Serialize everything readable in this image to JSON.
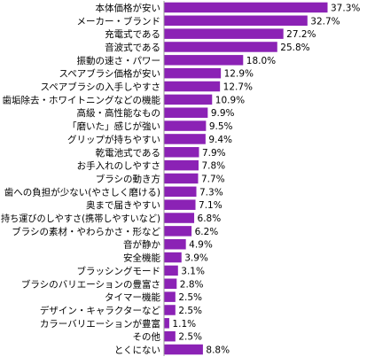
{
  "chart_data": {
    "type": "bar",
    "orientation": "horizontal",
    "title": "",
    "xlabel": "",
    "ylabel": "",
    "xlim": [
      0,
      37.3
    ],
    "grid": false,
    "legend": "none",
    "bar_color": "#8B22B5",
    "unit": "%",
    "categories": [
      "本体価格が安い",
      "メーカー・ブランド",
      "充電式である",
      "音波式である",
      "振動の速さ・パワー",
      "スペアブラシ価格が安い",
      "スペアブラシの入手しやすさ",
      "歯垢除去・ホワイトニングなどの機能",
      "高級・高性能なもの",
      "「磨いた」感じが強い",
      "グリップが持ちやすい",
      "乾電池式である",
      "お手入れのしやすさ",
      "ブラシの動き方",
      "歯への負担が少ない(やさしく磨ける)",
      "奥まで届きやすい",
      "持ち運びのしやすさ(携帯しやすいなど)",
      "ブラシの素材・やわらかさ・形など",
      "音が静か",
      "安全機能",
      "ブラッシングモード",
      "ブラシのバリエーションの豊富さ",
      "タイマー機能",
      "デザイン・キャラクターなど",
      "カラーバリエーションが豊富",
      "その他",
      "とくにない"
    ],
    "values": [
      37.3,
      32.7,
      27.2,
      25.8,
      18.0,
      12.9,
      12.7,
      10.9,
      9.9,
      9.5,
      9.4,
      7.9,
      7.8,
      7.7,
      7.3,
      7.1,
      6.8,
      6.2,
      4.9,
      3.9,
      3.1,
      2.8,
      2.5,
      2.5,
      1.1,
      2.5,
      8.8
    ],
    "value_labels": [
      "37.3%",
      "32.7%",
      "27.2%",
      "25.8%",
      "18.0%",
      "12.9%",
      "12.7%",
      "10.9%",
      "9.9%",
      "9.5%",
      "9.4%",
      "7.9%",
      "7.8%",
      "7.7%",
      "7.3%",
      "7.1%",
      "6.8%",
      "6.2%",
      "4.9%",
      "3.9%",
      "3.1%",
      "2.8%",
      "2.5%",
      "2.5%",
      "1.1%",
      "2.5%",
      "8.8%"
    ]
  }
}
